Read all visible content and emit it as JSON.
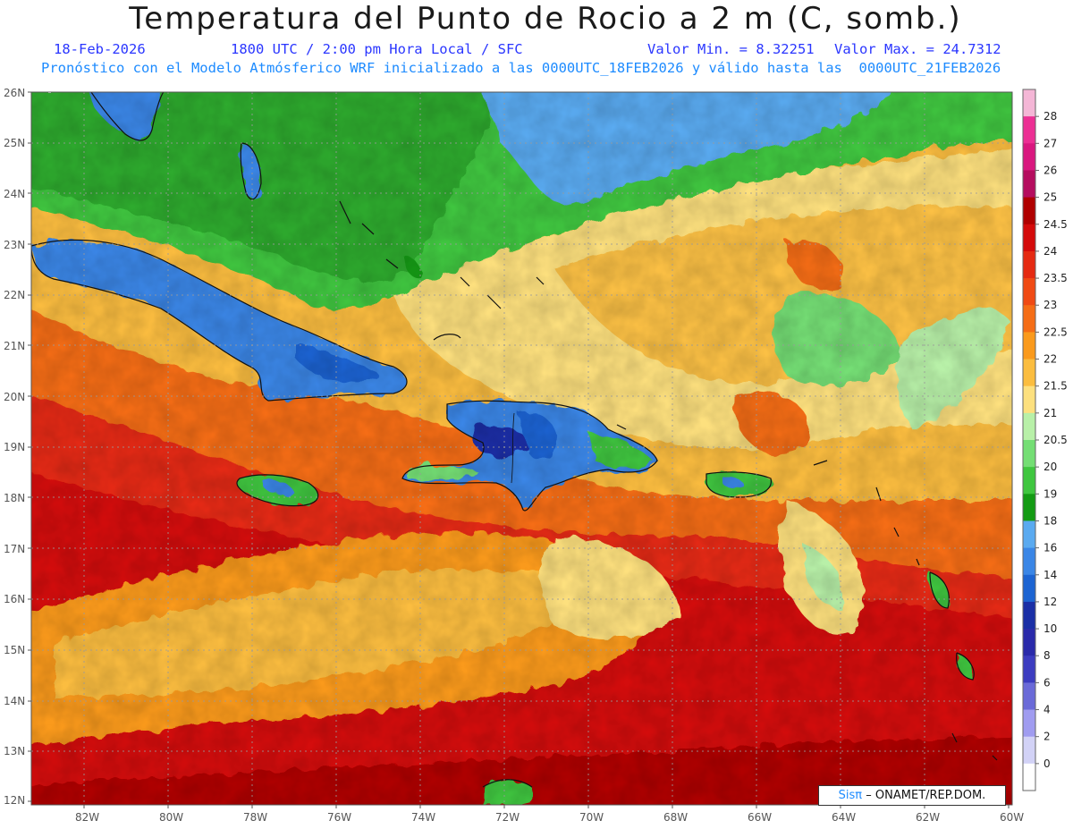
{
  "header": {
    "title": "Temperatura del Punto de Rocio a 2 m (C, somb.)",
    "date": "18-Feb-2026",
    "time": "1800 UTC / 2:00 pm Hora Local / SFC",
    "min_label": "Valor Min. = 8.32251",
    "max_label": "Valor Max. = 24.7312",
    "model_line": "Pronóstico con el Modelo Atmósferico WRF inicializado a las 0000UTC_18FEB2026 y válido hasta las  0000UTC_21FEB2026"
  },
  "map": {
    "variable": "Dew point temperature at 2 m",
    "units": "C",
    "value_min": 8.32251,
    "value_max": 24.7312,
    "lat_range": [
      12,
      26
    ],
    "lon_range": [
      -83,
      -60
    ],
    "lat_ticks": [
      "26N",
      "25N",
      "24N",
      "23N",
      "22N",
      "21N",
      "20N",
      "19N",
      "18N",
      "17N",
      "16N",
      "15N",
      "14N",
      "13N",
      "12N"
    ],
    "lon_ticks": [
      "82W",
      "80W",
      "78W",
      "76W",
      "74W",
      "72W",
      "70W",
      "68W",
      "66W",
      "64W",
      "62W",
      "60W"
    ]
  },
  "colorbar": {
    "levels": [
      "28",
      "27",
      "26",
      "25",
      "24.5",
      "24",
      "23.5",
      "23",
      "22.5",
      "22",
      "21.5",
      "21",
      "20.5",
      "20",
      "19",
      "18",
      "16",
      "14",
      "12",
      "10",
      "8",
      "6",
      "4",
      "2",
      "0"
    ],
    "colors": [
      "#f4b6d6",
      "#ec2f94",
      "#d9177f",
      "#b50d5f",
      "#b00000",
      "#d40a0a",
      "#e52a12",
      "#f04a14",
      "#f56d16",
      "#fa9a1c",
      "#fbbd3f",
      "#fde07e",
      "#b8f0a8",
      "#74de74",
      "#3fc63f",
      "#139b13",
      "#5aaaf0",
      "#3a86e6",
      "#1c64d2",
      "#1a2fa6",
      "#2a2aaa",
      "#3c3cc0",
      "#6a6ad8",
      "#a09cf0",
      "#d2d2f6",
      "#ffffff"
    ]
  },
  "credit": {
    "sis": "Sisπ",
    "org": "– ONAMET/REP.DOM."
  }
}
